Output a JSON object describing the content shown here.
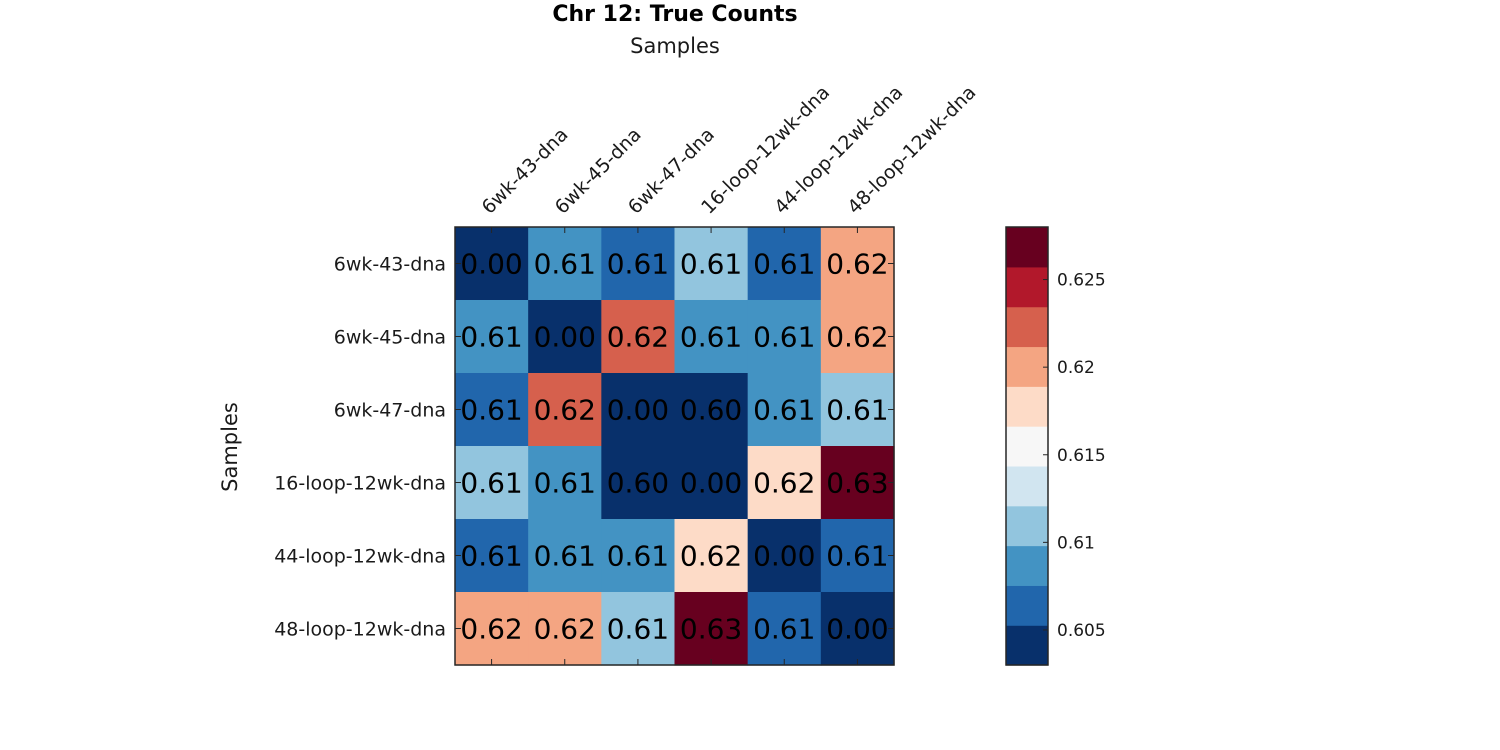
{
  "chart_data": {
    "type": "heatmap",
    "title": "Chr 12: True Counts",
    "xlabel": "Samples",
    "ylabel": "Samples",
    "x_position": "top",
    "categories_x": [
      "6wk-43-dna",
      "6wk-45-dna",
      "6wk-47-dna",
      "16-loop-12wk-dna",
      "44-loop-12wk-dna",
      "48-loop-12wk-dna"
    ],
    "categories_y": [
      "6wk-43-dna",
      "6wk-45-dna",
      "6wk-47-dna",
      "16-loop-12wk-dna",
      "44-loop-12wk-dna",
      "48-loop-12wk-dna"
    ],
    "values": [
      [
        0.0,
        0.609,
        0.607,
        0.611,
        0.607,
        0.621
      ],
      [
        0.609,
        0.0,
        0.623,
        0.609,
        0.609,
        0.621
      ],
      [
        0.607,
        0.623,
        0.0,
        0.6,
        0.609,
        0.611
      ],
      [
        0.611,
        0.609,
        0.6,
        0.0,
        0.618,
        0.628
      ],
      [
        0.607,
        0.609,
        0.609,
        0.618,
        0.0,
        0.607
      ],
      [
        0.621,
        0.621,
        0.611,
        0.628,
        0.607,
        0.0
      ]
    ],
    "cell_labels": [
      [
        "0.00",
        "0.61",
        "0.61",
        "0.61",
        "0.61",
        "0.62"
      ],
      [
        "0.61",
        "0.00",
        "0.62",
        "0.61",
        "0.61",
        "0.62"
      ],
      [
        "0.61",
        "0.62",
        "0.00",
        "0.60",
        "0.61",
        "0.61"
      ],
      [
        "0.61",
        "0.61",
        "0.60",
        "0.00",
        "0.62",
        "0.63"
      ],
      [
        "0.61",
        "0.61",
        "0.61",
        "0.62",
        "0.00",
        "0.61"
      ],
      [
        "0.62",
        "0.62",
        "0.61",
        "0.63",
        "0.61",
        "0.00"
      ]
    ],
    "colorbar": {
      "range": [
        0.603,
        0.628
      ],
      "ticks": [
        0.605,
        0.61,
        0.615,
        0.62,
        0.625
      ],
      "tick_labels": [
        "0.605",
        "0.61",
        "0.615",
        "0.62",
        "0.625"
      ],
      "colors": [
        "#08306b",
        "#2166ac",
        "#4393c3",
        "#92c5de",
        "#d1e5f0",
        "#f7f7f7",
        "#fddbc7",
        "#f4a582",
        "#d6604d",
        "#b2182b",
        "#67001f"
      ]
    }
  }
}
